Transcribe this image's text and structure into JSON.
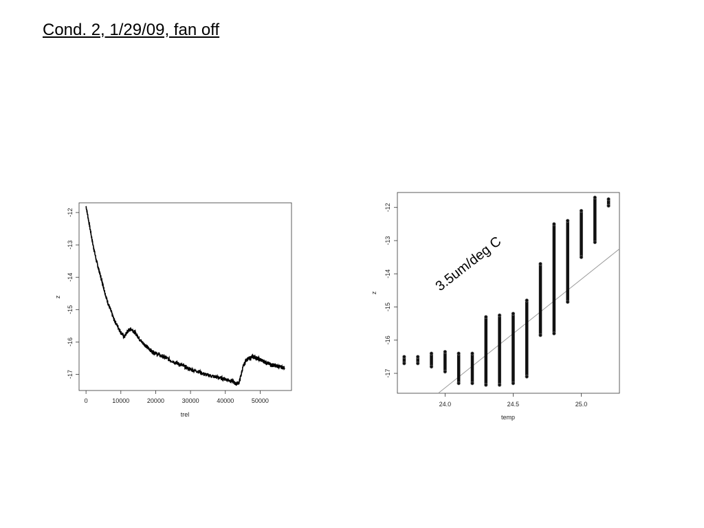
{
  "slide": {
    "title": "Cond. 2, 1/29/09, fan off"
  },
  "chart_data": [
    {
      "type": "line",
      "title": "",
      "xlabel": "trel",
      "ylabel": "z",
      "xlim": [
        -2000,
        59000
      ],
      "ylim": [
        -17.5,
        -11.7
      ],
      "xticks": [
        0,
        10000,
        20000,
        30000,
        40000,
        50000
      ],
      "yticks": [
        -12,
        -13,
        -14,
        -15,
        -16,
        -17
      ],
      "grid": false,
      "series": [
        {
          "x": [
            0,
            1000,
            2000,
            3000,
            4000,
            5000,
            6000,
            7000,
            8000,
            9000,
            10000,
            11000,
            12000,
            13000,
            14000,
            15000,
            16000,
            17000,
            18000,
            19000,
            20000,
            22000,
            24000,
            26000,
            28000,
            30000,
            32000,
            34000,
            36000,
            38000,
            40000,
            42000,
            43000,
            44000,
            45000,
            46000,
            47000,
            48000,
            49000,
            50000,
            51000,
            52000,
            53000,
            54000,
            55000,
            56000,
            57000
          ],
          "y": [
            -11.8,
            -12.4,
            -13.0,
            -13.5,
            -13.9,
            -14.3,
            -14.7,
            -15.0,
            -15.3,
            -15.5,
            -15.7,
            -15.85,
            -15.65,
            -15.6,
            -15.7,
            -15.85,
            -16.0,
            -16.1,
            -16.2,
            -16.3,
            -16.35,
            -16.45,
            -16.55,
            -16.65,
            -16.75,
            -16.85,
            -16.9,
            -17.0,
            -17.05,
            -17.1,
            -17.15,
            -17.2,
            -17.3,
            -17.25,
            -16.8,
            -16.55,
            -16.5,
            -16.45,
            -16.5,
            -16.55,
            -16.6,
            -16.65,
            -16.7,
            -16.72,
            -16.75,
            -16.78,
            -16.8
          ]
        }
      ]
    },
    {
      "type": "scatter",
      "title": "",
      "xlabel": "temp",
      "ylabel": "z",
      "xlim": [
        23.65,
        25.28
      ],
      "ylim": [
        -17.6,
        -11.55
      ],
      "xticks": [
        24.0,
        24.5,
        25.0
      ],
      "xtick_labels": [
        "24.0",
        "24.5",
        "25.0"
      ],
      "yticks": [
        -12,
        -13,
        -14,
        -15,
        -16,
        -17
      ],
      "grid": false,
      "annotation": "3.5um/deg C",
      "point_columns": [
        {
          "x": 23.7,
          "ymin": -16.7,
          "ymax": -16.5
        },
        {
          "x": 23.8,
          "ymin": -16.7,
          "ymax": -16.5
        },
        {
          "x": 23.9,
          "ymin": -16.8,
          "ymax": -16.4
        },
        {
          "x": 24.0,
          "ymin": -16.95,
          "ymax": -16.35
        },
        {
          "x": 24.1,
          "ymin": -17.3,
          "ymax": -16.4
        },
        {
          "x": 24.2,
          "ymin": -17.3,
          "ymax": -16.4
        },
        {
          "x": 24.3,
          "ymin": -17.35,
          "ymax": -15.3
        },
        {
          "x": 24.4,
          "ymin": -17.35,
          "ymax": -15.25
        },
        {
          "x": 24.5,
          "ymin": -17.3,
          "ymax": -15.2
        },
        {
          "x": 24.6,
          "ymin": -17.1,
          "ymax": -14.8
        },
        {
          "x": 24.7,
          "ymin": -15.85,
          "ymax": -13.7
        },
        {
          "x": 24.8,
          "ymin": -15.8,
          "ymax": -12.5
        },
        {
          "x": 24.9,
          "ymin": -14.85,
          "ymax": -12.4
        },
        {
          "x": 25.0,
          "ymin": -13.5,
          "ymax": -12.1
        },
        {
          "x": 25.1,
          "ymin": -13.05,
          "ymax": -11.7
        },
        {
          "x": 25.2,
          "ymin": -11.95,
          "ymax": -11.75
        }
      ],
      "fit_line": {
        "x": [
          23.95,
          25.28
        ],
        "y": [
          -17.6,
          -13.25
        ]
      },
      "colors": {
        "points": "#111111",
        "fit_line": "#999999"
      }
    }
  ]
}
